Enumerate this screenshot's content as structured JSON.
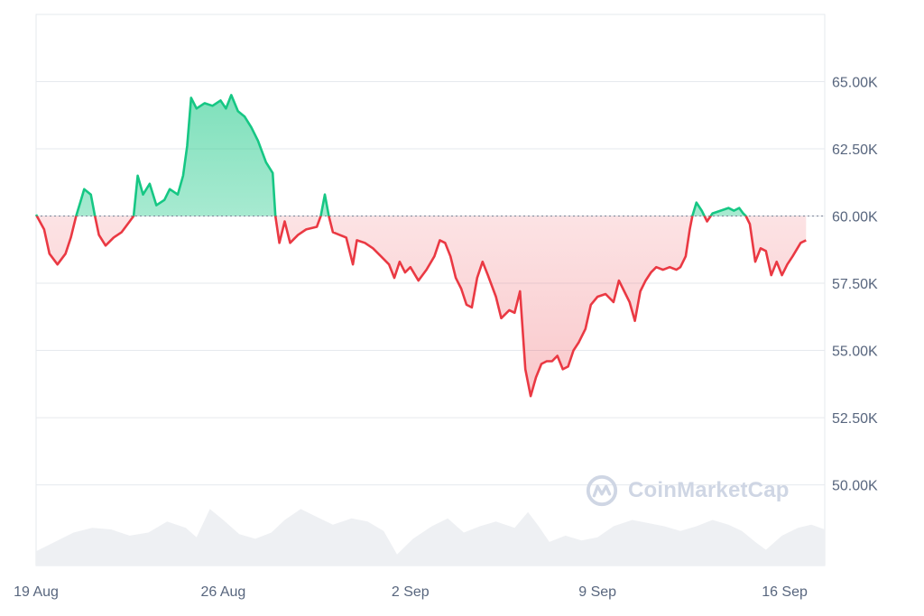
{
  "chart_data": {
    "type": "area",
    "watermark": "CoinMarketCap",
    "baseline": 60000,
    "y_ticks": [
      {
        "value": 65000,
        "label": "65.00K"
      },
      {
        "value": 62500,
        "label": "62.50K"
      },
      {
        "value": 60000,
        "label": "60.00K"
      },
      {
        "value": 57500,
        "label": "57.50K"
      },
      {
        "value": 55000,
        "label": "55.00K"
      },
      {
        "value": 52500,
        "label": "52.50K"
      },
      {
        "value": 50000,
        "label": "50.00K"
      }
    ],
    "x_ticks": [
      {
        "day": 0,
        "label": "19 Aug"
      },
      {
        "day": 7,
        "label": "26 Aug"
      },
      {
        "day": 14,
        "label": "2 Sep"
      },
      {
        "day": 21,
        "label": "9 Sep"
      },
      {
        "day": 28,
        "label": "16 Sep"
      }
    ],
    "xlim": [
      0,
      29.5
    ],
    "ylim": [
      47000,
      67500
    ],
    "colors": {
      "up": "#16c784",
      "down": "#ea3943",
      "volume": "#eef0f3",
      "grid": "#e6e9ee",
      "text": "#58667e"
    },
    "series": [
      {
        "values": [
          [
            0,
            60050
          ],
          [
            0.3,
            59500
          ],
          [
            0.5,
            58600
          ],
          [
            0.8,
            58200
          ],
          [
            1.1,
            58600
          ],
          [
            1.3,
            59200
          ],
          [
            1.5,
            60000
          ],
          [
            1.65,
            60500
          ],
          [
            1.8,
            61000
          ],
          [
            2.05,
            60800
          ],
          [
            2.2,
            60000
          ],
          [
            2.35,
            59300
          ],
          [
            2.6,
            58900
          ],
          [
            2.9,
            59200
          ],
          [
            3.2,
            59400
          ],
          [
            3.5,
            59800
          ],
          [
            3.65,
            60000
          ],
          [
            3.8,
            61500
          ],
          [
            4.0,
            60800
          ],
          [
            4.25,
            61200
          ],
          [
            4.5,
            60400
          ],
          [
            4.8,
            60600
          ],
          [
            5.0,
            61000
          ],
          [
            5.3,
            60800
          ],
          [
            5.5,
            61500
          ],
          [
            5.65,
            62600
          ],
          [
            5.8,
            64400
          ],
          [
            6.0,
            64000
          ],
          [
            6.3,
            64200
          ],
          [
            6.6,
            64100
          ],
          [
            6.9,
            64300
          ],
          [
            7.1,
            64000
          ],
          [
            7.3,
            64500
          ],
          [
            7.55,
            63900
          ],
          [
            7.8,
            63700
          ],
          [
            8.05,
            63300
          ],
          [
            8.3,
            62800
          ],
          [
            8.6,
            62000
          ],
          [
            8.85,
            61600
          ],
          [
            8.95,
            60000
          ],
          [
            9.1,
            59000
          ],
          [
            9.3,
            59800
          ],
          [
            9.5,
            59000
          ],
          [
            9.8,
            59300
          ],
          [
            10.1,
            59500
          ],
          [
            10.5,
            59600
          ],
          [
            10.65,
            60000
          ],
          [
            10.8,
            60800
          ],
          [
            10.95,
            60000
          ],
          [
            11.1,
            59400
          ],
          [
            11.35,
            59300
          ],
          [
            11.6,
            59200
          ],
          [
            11.85,
            58200
          ],
          [
            12.0,
            59100
          ],
          [
            12.3,
            59000
          ],
          [
            12.6,
            58800
          ],
          [
            12.9,
            58500
          ],
          [
            13.2,
            58200
          ],
          [
            13.4,
            57700
          ],
          [
            13.6,
            58300
          ],
          [
            13.8,
            57900
          ],
          [
            14.0,
            58100
          ],
          [
            14.3,
            57600
          ],
          [
            14.6,
            58000
          ],
          [
            14.9,
            58500
          ],
          [
            15.1,
            59100
          ],
          [
            15.3,
            59000
          ],
          [
            15.5,
            58500
          ],
          [
            15.7,
            57700
          ],
          [
            15.9,
            57300
          ],
          [
            16.1,
            56700
          ],
          [
            16.3,
            56600
          ],
          [
            16.5,
            57700
          ],
          [
            16.7,
            58300
          ],
          [
            16.9,
            57800
          ],
          [
            17.2,
            57000
          ],
          [
            17.4,
            56200
          ],
          [
            17.7,
            56500
          ],
          [
            17.9,
            56400
          ],
          [
            18.1,
            57200
          ],
          [
            18.3,
            54300
          ],
          [
            18.5,
            53300
          ],
          [
            18.7,
            54000
          ],
          [
            18.9,
            54500
          ],
          [
            19.1,
            54600
          ],
          [
            19.3,
            54600
          ],
          [
            19.5,
            54800
          ],
          [
            19.7,
            54300
          ],
          [
            19.9,
            54400
          ],
          [
            20.1,
            55000
          ],
          [
            20.3,
            55300
          ],
          [
            20.55,
            55800
          ],
          [
            20.75,
            56700
          ],
          [
            21.0,
            57000
          ],
          [
            21.3,
            57100
          ],
          [
            21.6,
            56800
          ],
          [
            21.8,
            57600
          ],
          [
            22.0,
            57200
          ],
          [
            22.2,
            56800
          ],
          [
            22.4,
            56100
          ],
          [
            22.6,
            57200
          ],
          [
            22.8,
            57600
          ],
          [
            23.0,
            57900
          ],
          [
            23.2,
            58100
          ],
          [
            23.45,
            58000
          ],
          [
            23.7,
            58100
          ],
          [
            23.95,
            58000
          ],
          [
            24.1,
            58100
          ],
          [
            24.3,
            58500
          ],
          [
            24.45,
            59500
          ],
          [
            24.55,
            60000
          ],
          [
            24.7,
            60500
          ],
          [
            24.9,
            60200
          ],
          [
            25.1,
            59800
          ],
          [
            25.3,
            60100
          ],
          [
            25.6,
            60200
          ],
          [
            25.9,
            60300
          ],
          [
            26.1,
            60200
          ],
          [
            26.3,
            60300
          ],
          [
            26.45,
            60100
          ],
          [
            26.55,
            60000
          ],
          [
            26.7,
            59700
          ],
          [
            26.9,
            58300
          ],
          [
            27.1,
            58800
          ],
          [
            27.3,
            58700
          ],
          [
            27.5,
            57800
          ],
          [
            27.7,
            58300
          ],
          [
            27.9,
            57800
          ],
          [
            28.1,
            58200
          ],
          [
            28.3,
            58500
          ],
          [
            28.6,
            59000
          ],
          [
            28.8,
            59100
          ]
        ]
      }
    ],
    "volume": [
      [
        0,
        0.18
      ],
      [
        0.7,
        0.3
      ],
      [
        1.4,
        0.42
      ],
      [
        2.1,
        0.48
      ],
      [
        2.8,
        0.46
      ],
      [
        3.5,
        0.38
      ],
      [
        4.2,
        0.42
      ],
      [
        4.9,
        0.56
      ],
      [
        5.6,
        0.48
      ],
      [
        6.0,
        0.36
      ],
      [
        6.5,
        0.72
      ],
      [
        7.0,
        0.58
      ],
      [
        7.6,
        0.4
      ],
      [
        8.2,
        0.34
      ],
      [
        8.8,
        0.42
      ],
      [
        9.3,
        0.58
      ],
      [
        9.9,
        0.72
      ],
      [
        10.5,
        0.62
      ],
      [
        11.1,
        0.52
      ],
      [
        11.8,
        0.6
      ],
      [
        12.4,
        0.56
      ],
      [
        13.0,
        0.44
      ],
      [
        13.5,
        0.14
      ],
      [
        14.1,
        0.34
      ],
      [
        14.8,
        0.5
      ],
      [
        15.4,
        0.6
      ],
      [
        16.0,
        0.42
      ],
      [
        16.6,
        0.5
      ],
      [
        17.2,
        0.56
      ],
      [
        17.9,
        0.48
      ],
      [
        18.4,
        0.68
      ],
      [
        18.8,
        0.5
      ],
      [
        19.2,
        0.3
      ],
      [
        19.8,
        0.38
      ],
      [
        20.4,
        0.32
      ],
      [
        21.0,
        0.36
      ],
      [
        21.6,
        0.5
      ],
      [
        22.3,
        0.58
      ],
      [
        22.9,
        0.54
      ],
      [
        23.5,
        0.5
      ],
      [
        24.1,
        0.44
      ],
      [
        24.7,
        0.5
      ],
      [
        25.3,
        0.58
      ],
      [
        25.9,
        0.52
      ],
      [
        26.4,
        0.44
      ],
      [
        26.9,
        0.3
      ],
      [
        27.3,
        0.2
      ],
      [
        27.9,
        0.38
      ],
      [
        28.5,
        0.48
      ],
      [
        29.0,
        0.52
      ],
      [
        29.5,
        0.46
      ]
    ]
  }
}
